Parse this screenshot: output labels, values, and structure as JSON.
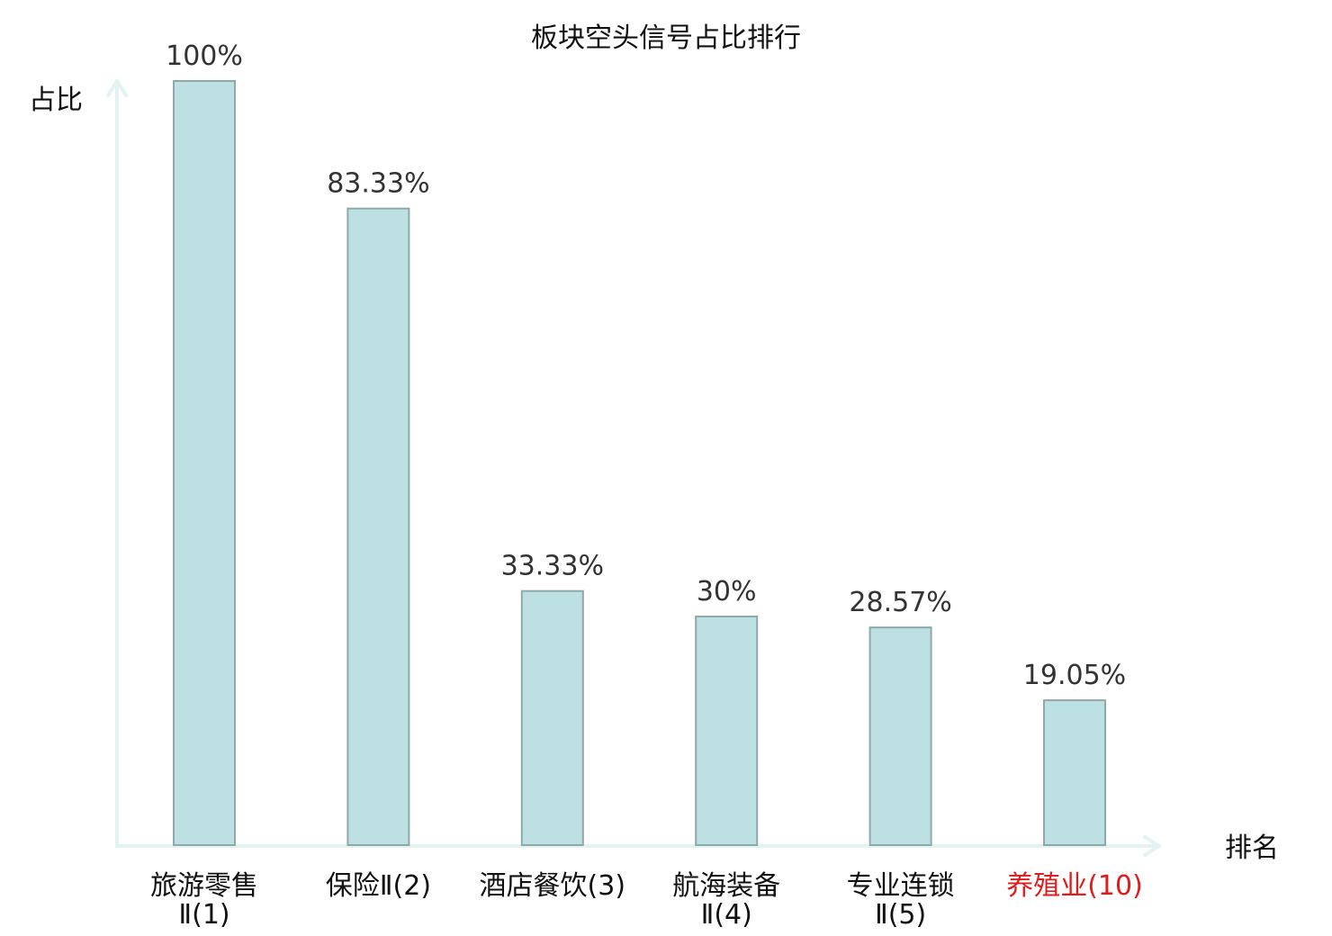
{
  "chart_data": {
    "type": "bar",
    "title": "板块空头信号占比排行",
    "ylabel": "占比",
    "xlabel": "排名",
    "ylim": [
      0,
      100
    ],
    "grid": false,
    "categories": [
      [
        "旅游零售",
        "Ⅱ(1)"
      ],
      [
        "保险Ⅱ(2)"
      ],
      [
        "酒店餐饮(3)"
      ],
      [
        "航海装备",
        "Ⅱ(4)"
      ],
      [
        "专业连锁",
        "Ⅱ(5)"
      ],
      [
        "养殖业(10)"
      ]
    ],
    "values": [
      100,
      83.33,
      33.33,
      30,
      28.57,
      19.05
    ],
    "value_labels": [
      "100%",
      "83.33%",
      "33.33%",
      "30%",
      "28.57%",
      "19.05%"
    ],
    "highlight_index": 5,
    "colors": {
      "bar_fill": "#bde0e3",
      "bar_stroke": "#8fa9ab",
      "axis": "#e3f3f1",
      "text": "#111111",
      "value_text": "#333333",
      "highlight_text": "#e01b1b"
    }
  }
}
